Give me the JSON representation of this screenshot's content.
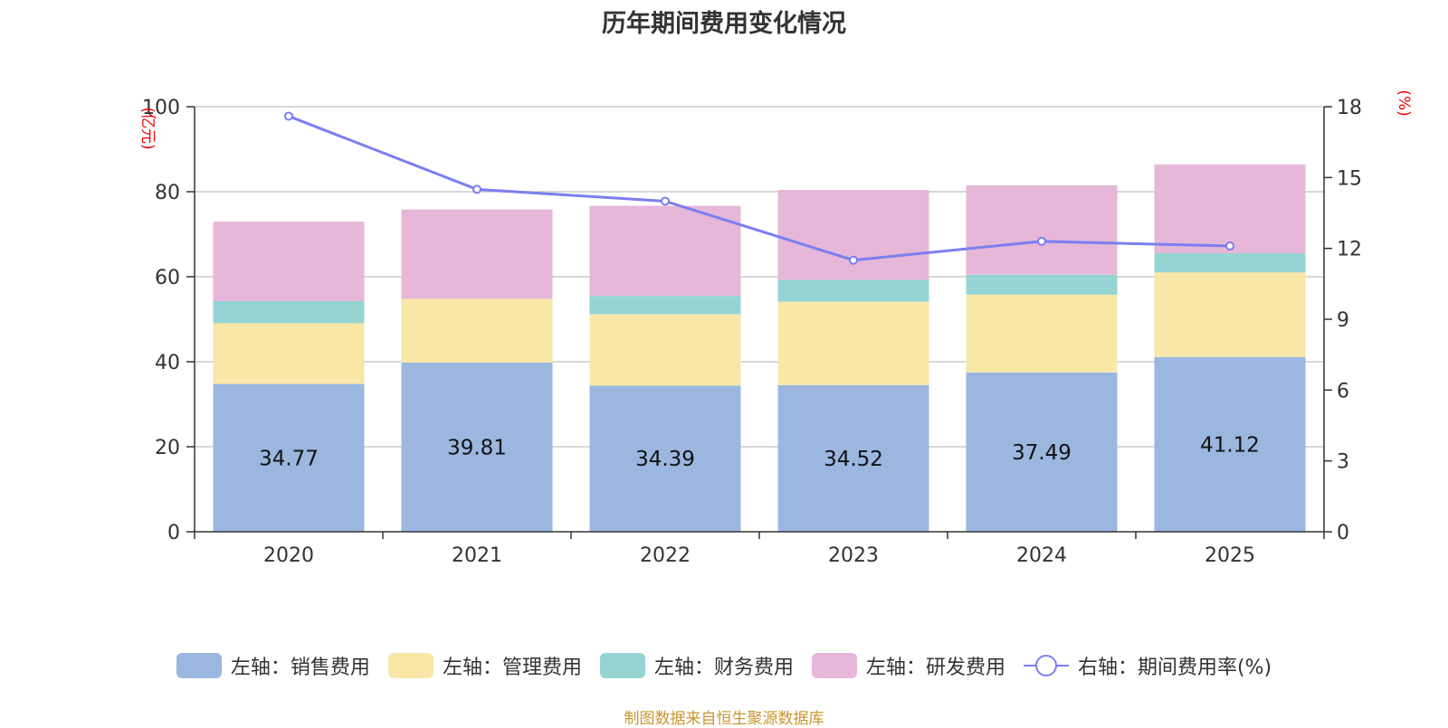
{
  "chart_data": {
    "type": "bar",
    "stacked": true,
    "title": "历年期间费用变化情况",
    "categories": [
      "2020",
      "2021",
      "2022",
      "2023",
      "2024",
      "2025"
    ],
    "series": [
      {
        "name": "左轴：销售费用",
        "axis": "left",
        "color": "#9bb7e0",
        "values": [
          34.77,
          39.81,
          34.39,
          34.52,
          37.49,
          41.12
        ],
        "labels": [
          "34.77",
          "39.81",
          "34.39",
          "34.52",
          "37.49",
          "41.12"
        ]
      },
      {
        "name": "左轴：管理费用",
        "axis": "left",
        "color": "#f8e7a7",
        "values": [
          14.3,
          15.0,
          16.8,
          19.6,
          18.3,
          19.9
        ]
      },
      {
        "name": "左轴：财务费用",
        "axis": "left",
        "color": "#95d4d3",
        "values": [
          5.2,
          0.0,
          4.3,
          5.2,
          4.7,
          4.5
        ]
      },
      {
        "name": "左轴：研发费用",
        "axis": "left",
        "color": "#e6b7d8",
        "values": [
          18.7,
          21.0,
          21.2,
          21.1,
          21.0,
          20.9
        ]
      }
    ],
    "line_series": {
      "name": "右轴：期间费用率(%)",
      "axis": "right",
      "color": "#7b7ef0",
      "values": [
        17.6,
        14.5,
        14.0,
        11.5,
        12.3,
        12.1
      ]
    },
    "y_left": {
      "label": "(亿元)",
      "ylim": [
        0,
        100
      ],
      "ticks": [
        0,
        20,
        40,
        60,
        80,
        100
      ]
    },
    "y_right": {
      "label": "(%)",
      "ylim": [
        0,
        18
      ],
      "ticks": [
        0,
        3,
        6,
        9,
        12,
        15,
        18
      ]
    },
    "grid": true,
    "legend_position": "bottom"
  },
  "legend": [
    {
      "label": "左轴：销售费用",
      "color": "#9bb7e0"
    },
    {
      "label": "左轴：管理费用",
      "color": "#f8e7a7"
    },
    {
      "label": "左轴：财务费用",
      "color": "#95d4d3"
    },
    {
      "label": "左轴：研发费用",
      "color": "#e6b7d8"
    },
    {
      "label": "右轴：期间费用率(%)",
      "color": "#7b7ef0"
    }
  ],
  "source": "制图数据来自恒生聚源数据库"
}
